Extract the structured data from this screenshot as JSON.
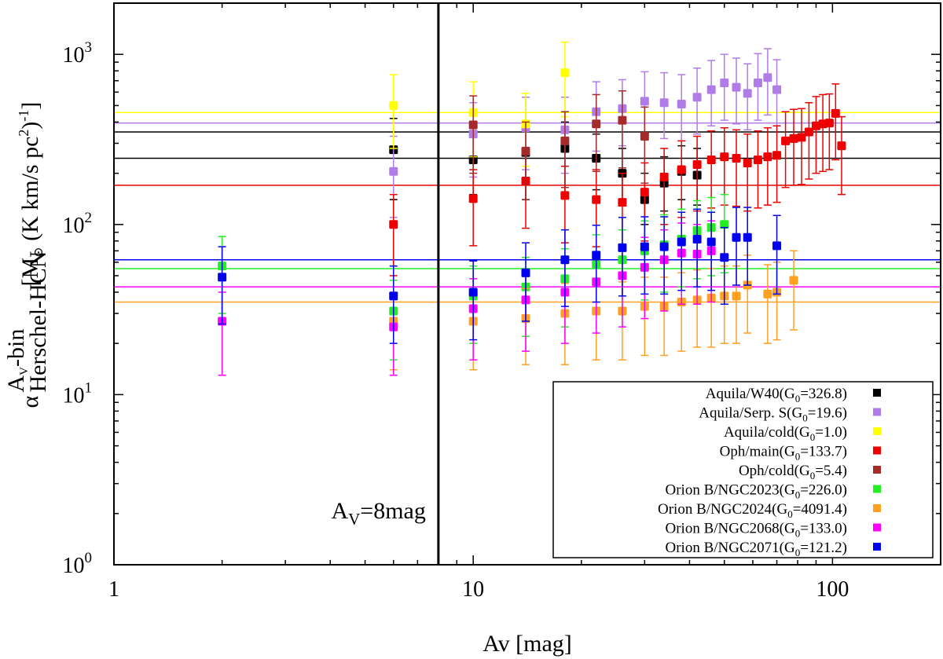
{
  "chart_data": {
    "type": "scatter",
    "xscale": "log",
    "yscale": "log",
    "xlim": [
      1,
      200
    ],
    "ylim": [
      1,
      2000
    ],
    "xlabel": "Av [mag]",
    "ylabel": {
      "symbol": "α",
      "sup": "A",
      "sup_sub": "V",
      "sup_tail": "-bin",
      "sub": "Herschel-HCN",
      "units": " [M",
      "units_sun": "⊙",
      "units_tail": " (K km/s pc",
      "units_sq": "2",
      "units_close": ")",
      "units_exp": "-1",
      "units_end": "]"
    },
    "x_ticks": [
      {
        "value": 1,
        "label": "1"
      },
      {
        "value": 10,
        "label": "10"
      },
      {
        "value": 100,
        "label": "100"
      }
    ],
    "y_ticks": [
      {
        "value": 1,
        "base": "10",
        "exp": "0"
      },
      {
        "value": 10,
        "base": "10",
        "exp": "1"
      },
      {
        "value": 100,
        "base": "10",
        "exp": "2"
      },
      {
        "value": 1000,
        "base": "10",
        "exp": "3"
      }
    ],
    "vline": {
      "x": 8
    },
    "annotation": {
      "main": "A",
      "sub": "V",
      "tail": "=8mag"
    },
    "legend_placement": "bottom-right",
    "series": [
      {
        "id": "w40",
        "name": "Aquila/W40",
        "g0": "326.8",
        "color": "#000000",
        "hline": 245,
        "hline2": 350,
        "points": [
          {
            "x": 6,
            "y": 275,
            "lo": 140,
            "hi": 420
          },
          {
            "x": 10,
            "y": 240,
            "lo": 150,
            "hi": 340
          },
          {
            "x": 14,
            "y": 265,
            "lo": 140,
            "hi": 380
          },
          {
            "x": 18,
            "y": 280,
            "lo": 150,
            "hi": 400
          },
          {
            "x": 22,
            "y": 245,
            "lo": 160,
            "hi": 340
          },
          {
            "x": 26,
            "y": 200,
            "lo": 130,
            "hi": 280
          },
          {
            "x": 30,
            "y": 140,
            "lo": 100,
            "hi": 200
          },
          {
            "x": 34,
            "y": 175,
            "lo": 120,
            "hi": 250
          },
          {
            "x": 38,
            "y": 205,
            "lo": 140,
            "hi": 290
          },
          {
            "x": 42,
            "y": 195,
            "lo": 130,
            "hi": 280
          }
        ]
      },
      {
        "id": "serps",
        "name": "Aquila/Serp. S",
        "g0": "19.6",
        "color": "#b07de8",
        "hline": 395,
        "points": [
          {
            "x": 6,
            "y": 205,
            "lo": 110,
            "hi": 330
          },
          {
            "x": 10,
            "y": 340,
            "lo": 190,
            "hi": 520
          },
          {
            "x": 14,
            "y": 370,
            "lo": 210,
            "hi": 560
          },
          {
            "x": 18,
            "y": 360,
            "lo": 200,
            "hi": 560
          },
          {
            "x": 22,
            "y": 460,
            "lo": 270,
            "hi": 690
          },
          {
            "x": 26,
            "y": 480,
            "lo": 290,
            "hi": 710
          },
          {
            "x": 30,
            "y": 530,
            "lo": 320,
            "hi": 790
          },
          {
            "x": 34,
            "y": 520,
            "lo": 320,
            "hi": 780
          },
          {
            "x": 38,
            "y": 510,
            "lo": 310,
            "hi": 760
          },
          {
            "x": 42,
            "y": 560,
            "lo": 340,
            "hi": 830
          },
          {
            "x": 46,
            "y": 620,
            "lo": 380,
            "hi": 920
          },
          {
            "x": 50,
            "y": 680,
            "lo": 410,
            "hi": 1000
          },
          {
            "x": 54,
            "y": 640,
            "lo": 390,
            "hi": 950
          },
          {
            "x": 58,
            "y": 590,
            "lo": 360,
            "hi": 880
          },
          {
            "x": 62,
            "y": 680,
            "lo": 410,
            "hi": 1010
          },
          {
            "x": 66,
            "y": 730,
            "lo": 440,
            "hi": 1080
          },
          {
            "x": 70,
            "y": 620,
            "lo": 380,
            "hi": 930
          }
        ]
      },
      {
        "id": "cold",
        "name": "Aquila/cold",
        "g0": "1.0",
        "color": "#ffff00",
        "hline": 455,
        "points": [
          {
            "x": 6,
            "y": 500,
            "lo": 280,
            "hi": 760
          },
          {
            "x": 10,
            "y": 455,
            "lo": 250,
            "hi": 690
          },
          {
            "x": 14,
            "y": 390,
            "lo": 220,
            "hi": 590
          },
          {
            "x": 18,
            "y": 780,
            "lo": 430,
            "hi": 1180
          }
        ]
      },
      {
        "id": "ophmain",
        "name": "Oph/main",
        "g0": "133.7",
        "color": "#ee0000",
        "hline": 170,
        "points": [
          {
            "x": 6,
            "y": 100,
            "lo": 50,
            "hi": 150
          },
          {
            "x": 10,
            "y": 142,
            "lo": 75,
            "hi": 210
          },
          {
            "x": 14,
            "y": 180,
            "lo": 95,
            "hi": 270
          },
          {
            "x": 18,
            "y": 148,
            "lo": 78,
            "hi": 220
          },
          {
            "x": 22,
            "y": 140,
            "lo": 74,
            "hi": 210
          },
          {
            "x": 26,
            "y": 135,
            "lo": 70,
            "hi": 200
          },
          {
            "x": 30,
            "y": 155,
            "lo": 80,
            "hi": 230
          },
          {
            "x": 34,
            "y": 190,
            "lo": 100,
            "hi": 280
          },
          {
            "x": 38,
            "y": 210,
            "lo": 110,
            "hi": 310
          },
          {
            "x": 42,
            "y": 225,
            "lo": 120,
            "hi": 330
          },
          {
            "x": 46,
            "y": 240,
            "lo": 125,
            "hi": 355
          },
          {
            "x": 50,
            "y": 250,
            "lo": 130,
            "hi": 370
          },
          {
            "x": 54,
            "y": 245,
            "lo": 128,
            "hi": 360
          },
          {
            "x": 58,
            "y": 230,
            "lo": 120,
            "hi": 340
          },
          {
            "x": 62,
            "y": 240,
            "lo": 125,
            "hi": 355
          },
          {
            "x": 66,
            "y": 250,
            "lo": 130,
            "hi": 370
          },
          {
            "x": 70,
            "y": 255,
            "lo": 135,
            "hi": 380
          },
          {
            "x": 74,
            "y": 310,
            "lo": 165,
            "hi": 460
          },
          {
            "x": 78,
            "y": 320,
            "lo": 170,
            "hi": 475
          },
          {
            "x": 82,
            "y": 325,
            "lo": 172,
            "hi": 480
          },
          {
            "x": 86,
            "y": 350,
            "lo": 185,
            "hi": 520
          },
          {
            "x": 90,
            "y": 380,
            "lo": 200,
            "hi": 565
          },
          {
            "x": 94,
            "y": 390,
            "lo": 205,
            "hi": 580
          },
          {
            "x": 98,
            "y": 395,
            "lo": 210,
            "hi": 585
          },
          {
            "x": 102,
            "y": 450,
            "lo": 240,
            "hi": 670
          },
          {
            "x": 106,
            "y": 290,
            "lo": 150,
            "hi": 430
          }
        ]
      },
      {
        "id": "ophcold",
        "name": "Oph/cold",
        "g0": "5.4",
        "color": "#a52a2a",
        "hline": null,
        "points": [
          {
            "x": 10,
            "y": 385,
            "lo": 200,
            "hi": 570
          },
          {
            "x": 14,
            "y": 270,
            "lo": 140,
            "hi": 400
          },
          {
            "x": 18,
            "y": 310,
            "lo": 165,
            "hi": 460
          },
          {
            "x": 22,
            "y": 390,
            "lo": 205,
            "hi": 580
          },
          {
            "x": 26,
            "y": 410,
            "lo": 215,
            "hi": 610
          },
          {
            "x": 30,
            "y": 330,
            "lo": 175,
            "hi": 490
          }
        ]
      },
      {
        "id": "ngc2023",
        "name": "Orion B/NGC2023",
        "g0": "226.0",
        "color": "#22ee22",
        "hline": 55,
        "points": [
          {
            "x": 2,
            "y": 57,
            "lo": 30,
            "hi": 85
          },
          {
            "x": 6,
            "y": 31,
            "lo": 16,
            "hi": 47
          },
          {
            "x": 10,
            "y": 38,
            "lo": 20,
            "hi": 57
          },
          {
            "x": 14,
            "y": 43,
            "lo": 22,
            "hi": 64
          },
          {
            "x": 18,
            "y": 48,
            "lo": 25,
            "hi": 72
          },
          {
            "x": 22,
            "y": 58,
            "lo": 30,
            "hi": 87
          },
          {
            "x": 26,
            "y": 62,
            "lo": 32,
            "hi": 93
          },
          {
            "x": 30,
            "y": 70,
            "lo": 36,
            "hi": 105
          },
          {
            "x": 34,
            "y": 76,
            "lo": 40,
            "hi": 114
          },
          {
            "x": 38,
            "y": 82,
            "lo": 43,
            "hi": 123
          },
          {
            "x": 42,
            "y": 92,
            "lo": 48,
            "hi": 138
          },
          {
            "x": 46,
            "y": 96,
            "lo": 50,
            "hi": 144
          },
          {
            "x": 50,
            "y": 100,
            "lo": 52,
            "hi": 150
          }
        ]
      },
      {
        "id": "ngc2024",
        "name": "Orion B/NGC2024",
        "g0": "4091.4",
        "color": "#ffa020",
        "hline": 35,
        "points": [
          {
            "x": 6,
            "y": 27,
            "lo": 14,
            "hi": 40
          },
          {
            "x": 10,
            "y": 27,
            "lo": 14,
            "hi": 40
          },
          {
            "x": 14,
            "y": 28,
            "lo": 15,
            "hi": 42
          },
          {
            "x": 18,
            "y": 30,
            "lo": 15,
            "hi": 45
          },
          {
            "x": 22,
            "y": 31,
            "lo": 16,
            "hi": 46
          },
          {
            "x": 26,
            "y": 31,
            "lo": 16,
            "hi": 46
          },
          {
            "x": 30,
            "y": 33,
            "lo": 17,
            "hi": 49
          },
          {
            "x": 34,
            "y": 33,
            "lo": 17,
            "hi": 49
          },
          {
            "x": 38,
            "y": 35,
            "lo": 18,
            "hi": 52
          },
          {
            "x": 42,
            "y": 36,
            "lo": 19,
            "hi": 54
          },
          {
            "x": 46,
            "y": 37,
            "lo": 19,
            "hi": 55
          },
          {
            "x": 50,
            "y": 38,
            "lo": 20,
            "hi": 57
          },
          {
            "x": 54,
            "y": 38,
            "lo": 20,
            "hi": 57
          },
          {
            "x": 58,
            "y": 44,
            "lo": 23,
            "hi": 66
          },
          {
            "x": 66,
            "y": 39,
            "lo": 20,
            "hi": 58
          },
          {
            "x": 70,
            "y": 40,
            "lo": 21,
            "hi": 60
          },
          {
            "x": 78,
            "y": 47,
            "lo": 24,
            "hi": 70
          }
        ]
      },
      {
        "id": "ngc2068",
        "name": "Orion B/NGC2068",
        "g0": "133.0",
        "color": "#ff00ff",
        "hline": 43,
        "points": [
          {
            "x": 2,
            "y": 27,
            "lo": 13,
            "hi": 40
          },
          {
            "x": 6,
            "y": 25,
            "lo": 13,
            "hi": 38
          },
          {
            "x": 10,
            "y": 32,
            "lo": 16,
            "hi": 48
          },
          {
            "x": 14,
            "y": 36,
            "lo": 18,
            "hi": 54
          },
          {
            "x": 18,
            "y": 40,
            "lo": 20,
            "hi": 60
          },
          {
            "x": 22,
            "y": 46,
            "lo": 23,
            "hi": 69
          },
          {
            "x": 26,
            "y": 50,
            "lo": 25,
            "hi": 75
          },
          {
            "x": 30,
            "y": 56,
            "lo": 28,
            "hi": 84
          },
          {
            "x": 34,
            "y": 62,
            "lo": 31,
            "hi": 93
          },
          {
            "x": 38,
            "y": 68,
            "lo": 34,
            "hi": 102
          },
          {
            "x": 42,
            "y": 67,
            "lo": 34,
            "hi": 100
          },
          {
            "x": 46,
            "y": 70,
            "lo": 35,
            "hi": 105
          }
        ]
      },
      {
        "id": "ngc2071",
        "name": "Orion B/NGC2071",
        "g0": "121.2",
        "color": "#0000ee",
        "hline": 62,
        "points": [
          {
            "x": 2,
            "y": 49,
            "lo": 26,
            "hi": 74
          },
          {
            "x": 6,
            "y": 38,
            "lo": 20,
            "hi": 57
          },
          {
            "x": 10,
            "y": 40,
            "lo": 21,
            "hi": 61
          },
          {
            "x": 14,
            "y": 52,
            "lo": 27,
            "hi": 78
          },
          {
            "x": 18,
            "y": 62,
            "lo": 33,
            "hi": 93
          },
          {
            "x": 22,
            "y": 66,
            "lo": 35,
            "hi": 99
          },
          {
            "x": 26,
            "y": 73,
            "lo": 38,
            "hi": 110
          },
          {
            "x": 30,
            "y": 74,
            "lo": 39,
            "hi": 111
          },
          {
            "x": 34,
            "y": 74,
            "lo": 39,
            "hi": 111
          },
          {
            "x": 38,
            "y": 79,
            "lo": 41,
            "hi": 118
          },
          {
            "x": 42,
            "y": 82,
            "lo": 43,
            "hi": 123
          },
          {
            "x": 46,
            "y": 79,
            "lo": 41,
            "hi": 118
          },
          {
            "x": 50,
            "y": 64,
            "lo": 34,
            "hi": 96
          },
          {
            "x": 54,
            "y": 84,
            "lo": 44,
            "hi": 126
          },
          {
            "x": 58,
            "y": 84,
            "lo": 44,
            "hi": 126
          },
          {
            "x": 70,
            "y": 75,
            "lo": 39,
            "hi": 113
          }
        ]
      }
    ]
  }
}
